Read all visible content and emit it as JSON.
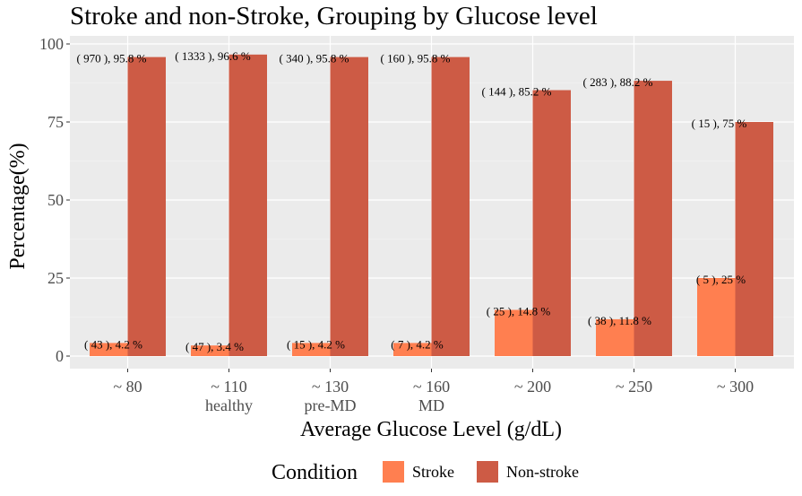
{
  "chart_data": {
    "type": "bar",
    "title": "Stroke and non-Stroke, Grouping by Glucose level",
    "xlabel": "Average Glucose Level (g/dL)",
    "ylabel": "Percentage(%)",
    "ylim": [
      0,
      100
    ],
    "yticks": [
      0,
      25,
      50,
      75,
      100
    ],
    "grid": true,
    "categories": [
      "~ 80",
      "~ 110",
      "~ 130",
      "~ 160",
      "~ 200",
      "~ 250",
      "~ 300"
    ],
    "category_sublabels": [
      "",
      "healthy",
      "pre-MD",
      "MD",
      "",
      "",
      ""
    ],
    "series": [
      {
        "name": "Stroke",
        "color": "#FF7F50",
        "values": [
          4.2,
          3.4,
          4.2,
          4.2,
          14.8,
          11.8,
          25
        ],
        "labels": [
          "( 43 ), 4.2 %",
          "( 47 ), 3.4 %",
          "( 15 ), 4.2 %",
          "( 7 ), 4.2 %",
          "( 25 ), 14.8 %",
          "( 38 ), 11.8 %",
          "( 5 ), 25 %"
        ]
      },
      {
        "name": "Non-stroke",
        "color": "#CD5B45",
        "values": [
          95.8,
          96.6,
          95.8,
          95.8,
          85.2,
          88.2,
          75
        ],
        "labels": [
          "( 970 ), 95.8 %",
          "( 1333 ), 96.6 %",
          "( 340 ), 95.8 %",
          "( 160 ), 95.8 %",
          "( 144 ), 85.2 %",
          "( 283 ), 88.2 %",
          "( 15 ), 75 %"
        ]
      }
    ],
    "legend": {
      "title": "Condition",
      "placement": "bottom"
    },
    "panel_background": "#EBEBEB"
  }
}
